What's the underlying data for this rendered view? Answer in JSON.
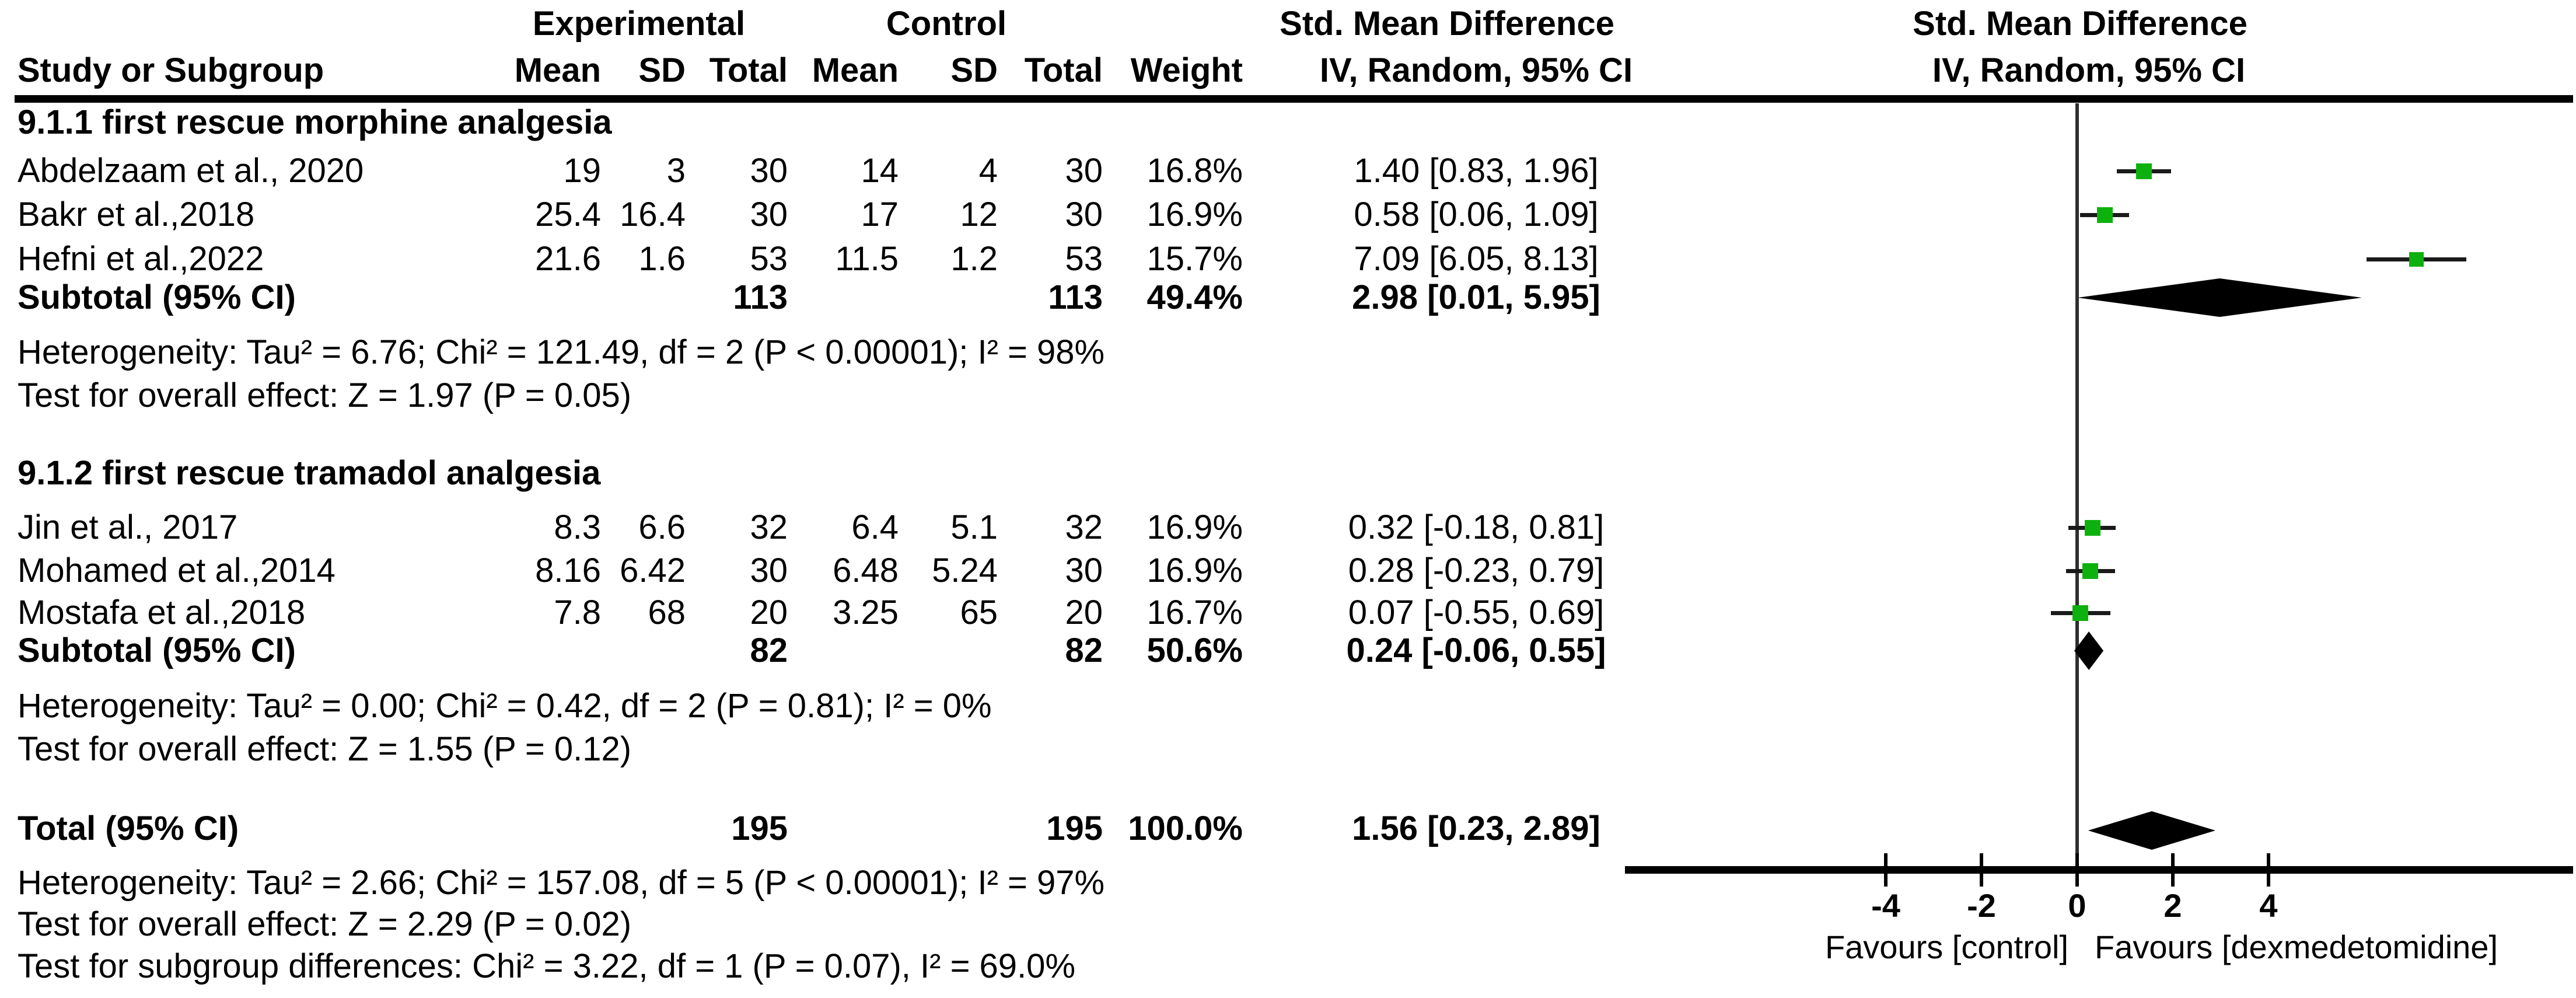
{
  "header": {
    "experimental": "Experimental",
    "control": "Control",
    "smd_table": "Std. Mean Difference",
    "smd_plot": "Std. Mean Difference",
    "method_table": "IV, Random, 95% CI",
    "method_plot": "IV, Random, 95% CI",
    "study": "Study or Subgroup",
    "mean": "Mean",
    "sd": "SD",
    "total": "Total",
    "weight": "Weight"
  },
  "subgroup1": {
    "title": "9.1.1 first rescue morphine analgesia",
    "studies": [
      {
        "name": "Abdelzaam et al., 2020",
        "mean_e": "19",
        "sd_e": "3",
        "total_e": "30",
        "mean_c": "14",
        "sd_c": "4",
        "total_c": "30",
        "weight": "16.8%",
        "ci_text": "1.40 [0.83, 1.96]"
      },
      {
        "name": "Bakr et al.,2018",
        "mean_e": "25.4",
        "sd_e": "16.4",
        "total_e": "30",
        "mean_c": "17",
        "sd_c": "12",
        "total_c": "30",
        "weight": "16.9%",
        "ci_text": "0.58 [0.06, 1.09]"
      },
      {
        "name": "Hefni et al.,2022",
        "mean_e": "21.6",
        "sd_e": "1.6",
        "total_e": "53",
        "mean_c": "11.5",
        "sd_c": "1.2",
        "total_c": "53",
        "weight": "15.7%",
        "ci_text": "7.09 [6.05, 8.13]"
      }
    ],
    "subtotal": {
      "label": "Subtotal (95% CI)",
      "total_e": "113",
      "total_c": "113",
      "weight": "49.4%",
      "ci_text": "2.98 [0.01, 5.95]"
    },
    "heterogeneity": "Heterogeneity: Tau² = 6.76; Chi² = 121.49, df = 2 (P < 0.00001); I² = 98%",
    "overall_effect": "Test for overall effect: Z = 1.97 (P = 0.05)"
  },
  "subgroup2": {
    "title": "9.1.2 first rescue tramadol analgesia",
    "studies": [
      {
        "name": "Jin et al., 2017",
        "mean_e": "8.3",
        "sd_e": "6.6",
        "total_e": "32",
        "mean_c": "6.4",
        "sd_c": "5.1",
        "total_c": "32",
        "weight": "16.9%",
        "ci_text": "0.32 [-0.18, 0.81]"
      },
      {
        "name": "Mohamed et al.,2014",
        "mean_e": "8.16",
        "sd_e": "6.42",
        "total_e": "30",
        "mean_c": "6.48",
        "sd_c": "5.24",
        "total_c": "30",
        "weight": "16.9%",
        "ci_text": "0.28 [-0.23, 0.79]"
      },
      {
        "name": "Mostafa et al.,2018",
        "mean_e": "7.8",
        "sd_e": "68",
        "total_e": "20",
        "mean_c": "3.25",
        "sd_c": "65",
        "total_c": "20",
        "weight": "16.7%",
        "ci_text": "0.07 [-0.55, 0.69]"
      }
    ],
    "subtotal": {
      "label": "Subtotal (95% CI)",
      "total_e": "82",
      "total_c": "82",
      "weight": "50.6%",
      "ci_text": "0.24 [-0.06, 0.55]"
    },
    "heterogeneity": "Heterogeneity: Tau² = 0.00; Chi² = 0.42, df = 2 (P = 0.81); I² = 0%",
    "overall_effect": "Test for overall effect: Z = 1.55 (P = 0.12)"
  },
  "total_row": {
    "label": "Total (95% CI)",
    "total_e": "195",
    "total_c": "195",
    "weight": "100.0%",
    "ci_text": "1.56 [0.23, 2.89]"
  },
  "total_stats": {
    "heterogeneity": "Heterogeneity: Tau² = 2.66; Chi² = 157.08, df = 5 (P < 0.00001); I² = 97%",
    "overall_effect": "Test for overall effect: Z = 2.29 (P = 0.02)",
    "subgroup_diff": "Test for subgroup differences: Chi² = 3.22, df = 1 (P = 0.07), I² = 69.0%"
  },
  "axis": {
    "favours_left": "Favours [control]",
    "favours_right": "Favours [dexmedetomidine]"
  },
  "colors": {
    "square_green": "#0db10d",
    "diamond_black": "#000000",
    "text_black": "#000000"
  },
  "chart_data": {
    "type": "scatter",
    "variant": "forest-plot",
    "title": "Std. Mean Difference  IV, Random, 95% CI",
    "effect_measure": "Std. Mean Difference (IV, Random, 95% CI)",
    "axis_ticks": [
      -4,
      -2,
      0,
      2,
      4
    ],
    "xlim": [
      -9.5,
      10.4
    ],
    "xlabel_left": "Favours [control]",
    "xlabel_right": "Favours [dexmedetomidine]",
    "grid": false,
    "rows": [
      {
        "id": "s1a",
        "subgroup": "9.1.1 first rescue morphine analgesia",
        "label": "Abdelzaam et al., 2020",
        "kind": "study",
        "est": 1.4,
        "lo": 0.83,
        "hi": 1.96,
        "weight_pct": 16.8
      },
      {
        "id": "s1b",
        "subgroup": "9.1.1 first rescue morphine analgesia",
        "label": "Bakr et al.,2018",
        "kind": "study",
        "est": 0.58,
        "lo": 0.06,
        "hi": 1.09,
        "weight_pct": 16.9
      },
      {
        "id": "s1c",
        "subgroup": "9.1.1 first rescue morphine analgesia",
        "label": "Hefni et al.,2022",
        "kind": "study",
        "est": 7.09,
        "lo": 6.05,
        "hi": 8.13,
        "weight_pct": 15.7
      },
      {
        "id": "sub1",
        "subgroup": "9.1.1 first rescue morphine analgesia",
        "label": "Subtotal (95% CI)",
        "kind": "summary",
        "est": 2.98,
        "lo": 0.01,
        "hi": 5.95,
        "weight_pct": 49.4
      },
      {
        "id": "s2a",
        "subgroup": "9.1.2 first rescue tramadol analgesia",
        "label": "Jin et al., 2017",
        "kind": "study",
        "est": 0.32,
        "lo": -0.18,
        "hi": 0.81,
        "weight_pct": 16.9
      },
      {
        "id": "s2b",
        "subgroup": "9.1.2 first rescue tramadol analgesia",
        "label": "Mohamed et al.,2014",
        "kind": "study",
        "est": 0.28,
        "lo": -0.23,
        "hi": 0.79,
        "weight_pct": 16.9
      },
      {
        "id": "s2c",
        "subgroup": "9.1.2 first rescue tramadol analgesia",
        "label": "Mostafa et al.,2018",
        "kind": "study",
        "est": 0.07,
        "lo": -0.55,
        "hi": 0.69,
        "weight_pct": 16.7
      },
      {
        "id": "sub2",
        "subgroup": "9.1.2 first rescue tramadol analgesia",
        "label": "Subtotal (95% CI)",
        "kind": "summary",
        "est": 0.24,
        "lo": -0.06,
        "hi": 0.55,
        "weight_pct": 50.6
      },
      {
        "id": "tot",
        "subgroup": null,
        "label": "Total (95% CI)",
        "kind": "summary",
        "est": 1.56,
        "lo": 0.23,
        "hi": 2.89,
        "weight_pct": 100.0
      }
    ]
  }
}
